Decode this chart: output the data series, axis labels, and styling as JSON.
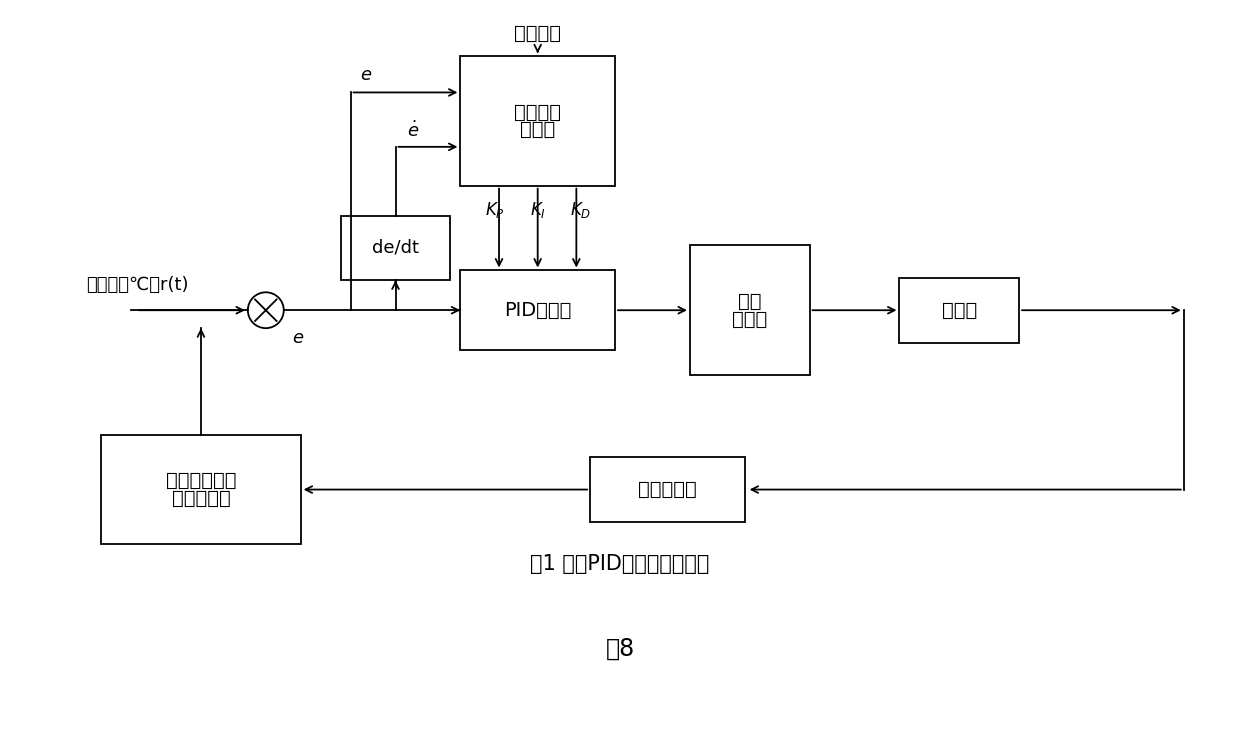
{
  "bg_color": "#ffffff",
  "title_caption": "图1 模糊PID控制器原理框图",
  "fig_label": "图8",
  "gongyi": "工艺过程",
  "fuzzy_lines": [
    "模糊参数",
    "调节器"
  ],
  "pid_lines": [
    "PID控制器"
  ],
  "relay_lines": [
    "固态",
    "继电器"
  ],
  "heater_lines": [
    "加热圈"
  ],
  "tsensor_lines": [
    "温度传感器"
  ],
  "amp_lines": [
    "温度传感器信",
    "号放大电路"
  ],
  "dedt_lines": [
    "de/dt"
  ],
  "label_given": "给定温度℃：r(t)",
  "label_e1": "e",
  "label_e2": "e",
  "label_edot": "ė",
  "label_kp": "K_P",
  "label_ki": "K_I",
  "label_kd": "K_D"
}
